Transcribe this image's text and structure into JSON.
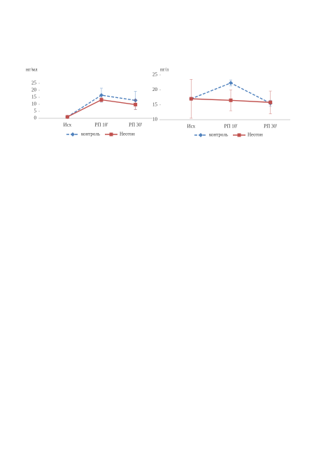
{
  "chart_data": [
    {
      "type": "line",
      "y_label": "нг/мл",
      "categories": [
        "Исх",
        "РП 10'",
        "РП 30'"
      ],
      "ylim": [
        0,
        25
      ],
      "yticks": [
        0,
        5,
        10,
        15,
        20,
        25
      ],
      "series": [
        {
          "name": "контроль",
          "color": "#4f81bd",
          "dash": true,
          "marker": "diamond",
          "values": [
            1,
            16.5,
            12.8
          ],
          "errors": [
            0.3,
            5,
            6.5
          ]
        },
        {
          "name": "Неотон",
          "color": "#c0504d",
          "dash": false,
          "marker": "square",
          "values": [
            1,
            13.2,
            9.8
          ],
          "errors": [
            0.3,
            1.5,
            3.5
          ]
        }
      ]
    },
    {
      "type": "line",
      "y_label": "пг/л",
      "categories": [
        "Исх",
        "РП 10'",
        "РП 30'"
      ],
      "ylim": [
        10,
        25
      ],
      "yticks": [
        10,
        15,
        20,
        25
      ],
      "series": [
        {
          "name": "контроль",
          "color": "#4f81bd",
          "dash": true,
          "marker": "diamond",
          "values": [
            17,
            22.3,
            15.5
          ],
          "errors": [
            0.3,
            1,
            1
          ]
        },
        {
          "name": "Неотон",
          "color": "#c0504d",
          "dash": false,
          "marker": "square",
          "values": [
            17,
            16.5,
            15.8
          ],
          "errors": [
            6.5,
            3.5,
            3.8
          ]
        }
      ]
    }
  ]
}
